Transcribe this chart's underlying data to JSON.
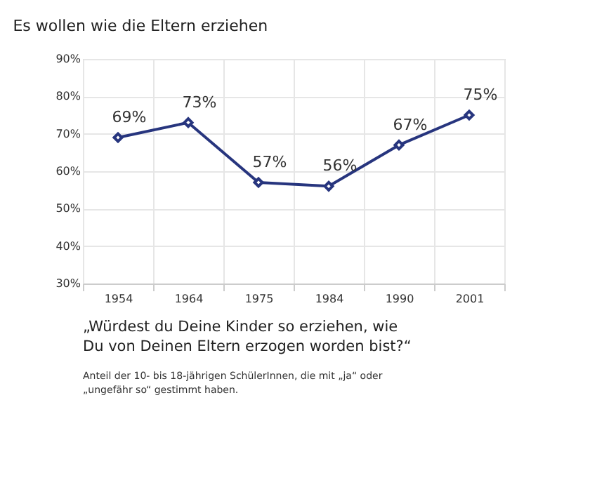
{
  "chart_data": {
    "type": "line",
    "title": "Es wollen wie die Eltern erziehen",
    "subtitle": "„Würdest du Deine Kinder so erziehen, wie\nDu von Deinen Eltern erzogen worden bist?“",
    "annotations": [
      "Anteil der 10- bis 18-jährigen SchülerInnen, die mit „ja“ oder\n„ungefähr so“ gestimmt haben."
    ],
    "categories": [
      "1954",
      "1964",
      "1975",
      "1984",
      "1990",
      "2001"
    ],
    "series": [
      {
        "color": "#27357e",
        "values": [
          69,
          73,
          57,
          56,
          67,
          75
        ],
        "value_labels": [
          "69%",
          "73%",
          "57%",
          "56%",
          "67%",
          "75%"
        ]
      }
    ],
    "ylim": [
      30,
      90
    ],
    "yticks": [
      {
        "value": 30,
        "label": "30%"
      },
      {
        "value": 40,
        "label": "40%"
      },
      {
        "value": 50,
        "label": "50%"
      },
      {
        "value": 60,
        "label": "60%"
      },
      {
        "value": 70,
        "label": "70%"
      },
      {
        "value": 80,
        "label": "80%"
      },
      {
        "value": 90,
        "label": "90%"
      }
    ],
    "grid": true,
    "marker": "diamond",
    "line_style": "solid"
  }
}
